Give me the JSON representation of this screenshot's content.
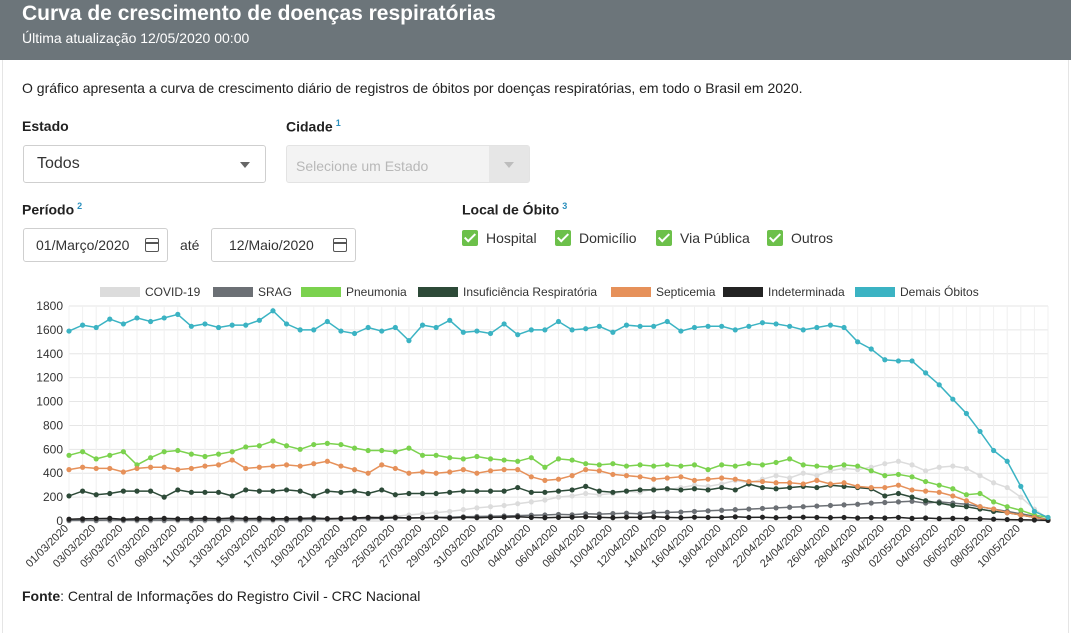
{
  "header": {
    "title": "Curva de crescimento de doenças respiratórias",
    "updated": "Última atualização 12/05/2020 00:00"
  },
  "description": "O gráfico apresenta a curva de crescimento diário de registros de óbitos por doenças respiratórias, em todo o Brasil em 2020.",
  "filters": {
    "estado_label": "Estado",
    "estado_value": "Todos",
    "cidade_label": "Cidade",
    "cidade_note": "1",
    "cidade_placeholder": "Selecione um Estado",
    "periodo_label": "Período",
    "periodo_note": "2",
    "date_from": "01/Março/2020",
    "date_sep": "até",
    "date_to": "12/Maio/2020",
    "local_label": "Local de Óbito",
    "local_note": "3",
    "local_options": [
      "Hospital",
      "Domicílio",
      "Via Pública",
      "Outros"
    ]
  },
  "source": {
    "label": "Fonte",
    "text": ": Central de Informações do Registro Civil - CRC Nacional"
  },
  "colors": {
    "header_bg": "#6c757a",
    "checkbox": "#6cc04a"
  },
  "chart_data": {
    "type": "line",
    "title": "",
    "xlabel": "",
    "ylabel": "",
    "ylim": [
      0,
      1800
    ],
    "yticks": [
      0,
      200,
      400,
      600,
      800,
      1000,
      1200,
      1400,
      1600,
      1800
    ],
    "grid": true,
    "legend_position": "top",
    "x": [
      "01/03/2020",
      "02/03/2020",
      "03/03/2020",
      "04/03/2020",
      "05/03/2020",
      "06/03/2020",
      "07/03/2020",
      "08/03/2020",
      "09/03/2020",
      "10/03/2020",
      "11/03/2020",
      "12/03/2020",
      "13/03/2020",
      "14/03/2020",
      "15/03/2020",
      "16/03/2020",
      "17/03/2020",
      "18/03/2020",
      "19/03/2020",
      "20/03/2020",
      "21/03/2020",
      "22/03/2020",
      "23/03/2020",
      "24/03/2020",
      "25/03/2020",
      "26/03/2020",
      "27/03/2020",
      "28/03/2020",
      "29/03/2020",
      "30/03/2020",
      "31/03/2020",
      "01/04/2020",
      "02/04/2020",
      "03/04/2020",
      "04/04/2020",
      "05/04/2020",
      "06/04/2020",
      "07/04/2020",
      "08/04/2020",
      "09/04/2020",
      "10/04/2020",
      "11/04/2020",
      "12/04/2020",
      "13/04/2020",
      "14/04/2020",
      "15/04/2020",
      "16/04/2020",
      "17/04/2020",
      "18/04/2020",
      "19/04/2020",
      "20/04/2020",
      "21/04/2020",
      "22/04/2020",
      "23/04/2020",
      "24/04/2020",
      "25/04/2020",
      "26/04/2020",
      "27/04/2020",
      "28/04/2020",
      "29/04/2020",
      "30/04/2020",
      "01/05/2020",
      "02/05/2020",
      "03/05/2020",
      "04/05/2020",
      "05/05/2020",
      "06/05/2020",
      "07/05/2020",
      "08/05/2020",
      "09/05/2020",
      "10/05/2020",
      "11/05/2020",
      "12/05/2020"
    ],
    "x_tick_labels": [
      "01/03/2020",
      "03/03/2020",
      "05/03/2020",
      "07/03/2020",
      "09/03/2020",
      "11/03/2020",
      "13/03/2020",
      "15/03/2020",
      "17/03/2020",
      "19/03/2020",
      "21/03/2020",
      "23/03/2020",
      "25/03/2020",
      "27/03/2020",
      "29/03/2020",
      "31/03/2020",
      "02/04/2020",
      "04/04/2020",
      "06/04/2020",
      "08/04/2020",
      "10/04/2020",
      "12/04/2020",
      "14/04/2020",
      "16/04/2020",
      "18/04/2020",
      "20/04/2020",
      "22/04/2020",
      "24/04/2020",
      "26/04/2020",
      "28/04/2020",
      "30/04/2020",
      "02/05/2020",
      "04/05/2020",
      "06/05/2020",
      "08/05/2020",
      "10/05/2020"
    ],
    "series": [
      {
        "name": "COVID-19",
        "color": "#dcdcdc",
        "values": [
          0,
          0,
          0,
          0,
          0,
          0,
          0,
          0,
          0,
          0,
          0,
          0,
          0,
          0,
          0,
          0,
          2,
          4,
          6,
          8,
          12,
          20,
          28,
          35,
          40,
          50,
          60,
          70,
          80,
          95,
          110,
          120,
          130,
          145,
          160,
          175,
          200,
          210,
          230,
          220,
          230,
          250,
          240,
          270,
          260,
          280,
          300,
          290,
          310,
          340,
          320,
          350,
          380,
          360,
          400,
          380,
          420,
          440,
          430,
          450,
          480,
          500,
          470,
          420,
          450,
          460,
          440,
          380,
          320,
          280,
          200,
          100,
          20
        ]
      },
      {
        "name": "SRAG",
        "color": "#6c7075",
        "values": [
          5,
          6,
          5,
          8,
          6,
          7,
          8,
          6,
          9,
          7,
          8,
          6,
          10,
          8,
          9,
          10,
          8,
          12,
          14,
          15,
          18,
          20,
          20,
          22,
          25,
          25,
          28,
          30,
          32,
          35,
          38,
          40,
          42,
          45,
          48,
          50,
          55,
          52,
          60,
          58,
          62,
          65,
          60,
          70,
          72,
          75,
          80,
          85,
          90,
          95,
          100,
          105,
          110,
          115,
          120,
          125,
          130,
          135,
          140,
          150,
          155,
          160,
          165,
          150,
          160,
          150,
          140,
          120,
          100,
          80,
          60,
          40,
          10
        ]
      },
      {
        "name": "Pneumonia",
        "color": "#7bd24e",
        "values": [
          550,
          580,
          520,
          550,
          580,
          470,
          530,
          580,
          590,
          560,
          540,
          560,
          580,
          620,
          630,
          670,
          630,
          600,
          640,
          650,
          640,
          610,
          590,
          590,
          580,
          610,
          550,
          550,
          530,
          520,
          540,
          520,
          510,
          500,
          530,
          450,
          520,
          510,
          480,
          470,
          480,
          460,
          470,
          460,
          470,
          460,
          470,
          430,
          470,
          460,
          480,
          470,
          490,
          520,
          470,
          460,
          450,
          470,
          460,
          420,
          380,
          390,
          370,
          330,
          300,
          270,
          220,
          230,
          160,
          120,
          90,
          50,
          30
        ]
      },
      {
        "name": "Insuficiência Respiratória",
        "color": "#2d4a38",
        "values": [
          210,
          250,
          220,
          230,
          250,
          250,
          250,
          200,
          260,
          240,
          240,
          240,
          210,
          260,
          250,
          250,
          260,
          250,
          210,
          250,
          240,
          250,
          230,
          260,
          220,
          230,
          230,
          230,
          240,
          250,
          250,
          250,
          250,
          280,
          240,
          240,
          250,
          260,
          290,
          250,
          240,
          250,
          260,
          260,
          270,
          260,
          270,
          260,
          280,
          260,
          310,
          280,
          270,
          280,
          290,
          280,
          300,
          290,
          280,
          270,
          210,
          230,
          200,
          170,
          150,
          130,
          120,
          100,
          80,
          70,
          50,
          30,
          10
        ]
      },
      {
        "name": "Septicemia",
        "color": "#e6915a",
        "values": [
          430,
          450,
          440,
          440,
          410,
          440,
          450,
          450,
          430,
          440,
          460,
          470,
          510,
          440,
          450,
          460,
          470,
          460,
          480,
          500,
          460,
          430,
          400,
          470,
          440,
          400,
          410,
          400,
          410,
          430,
          400,
          420,
          430,
          430,
          370,
          340,
          350,
          380,
          430,
          420,
          390,
          380,
          370,
          350,
          360,
          370,
          340,
          350,
          360,
          350,
          330,
          330,
          320,
          320,
          310,
          340,
          310,
          320,
          290,
          280,
          280,
          300,
          260,
          250,
          240,
          210,
          170,
          120,
          100,
          70,
          50,
          30,
          10
        ]
      },
      {
        "name": "Indeterminada",
        "color": "#232323",
        "values": [
          15,
          18,
          20,
          22,
          15,
          18,
          20,
          22,
          18,
          20,
          22,
          18,
          25,
          20,
          22,
          18,
          20,
          22,
          25,
          20,
          22,
          25,
          30,
          28,
          30,
          25,
          28,
          30,
          25,
          30,
          28,
          30,
          32,
          35,
          30,
          28,
          30,
          32,
          35,
          30,
          28,
          32,
          30,
          35,
          30,
          28,
          32,
          30,
          30,
          35,
          30,
          32,
          28,
          30,
          32,
          30,
          28,
          30,
          25,
          28,
          25,
          30,
          22,
          25,
          20,
          22,
          20,
          18,
          15,
          12,
          10,
          8,
          5
        ]
      },
      {
        "name": "Demais Óbitos",
        "color": "#3bb3c3",
        "values": [
          1590,
          1640,
          1620,
          1690,
          1650,
          1700,
          1670,
          1700,
          1730,
          1630,
          1650,
          1620,
          1640,
          1640,
          1680,
          1760,
          1650,
          1600,
          1600,
          1670,
          1590,
          1570,
          1620,
          1590,
          1620,
          1510,
          1640,
          1620,
          1680,
          1580,
          1590,
          1570,
          1650,
          1560,
          1600,
          1600,
          1670,
          1600,
          1610,
          1630,
          1580,
          1640,
          1630,
          1630,
          1670,
          1590,
          1620,
          1630,
          1630,
          1600,
          1630,
          1660,
          1650,
          1630,
          1600,
          1620,
          1640,
          1620,
          1500,
          1440,
          1350,
          1340,
          1340,
          1240,
          1140,
          1020,
          900,
          750,
          590,
          500,
          290,
          80,
          30
        ]
      }
    ]
  }
}
